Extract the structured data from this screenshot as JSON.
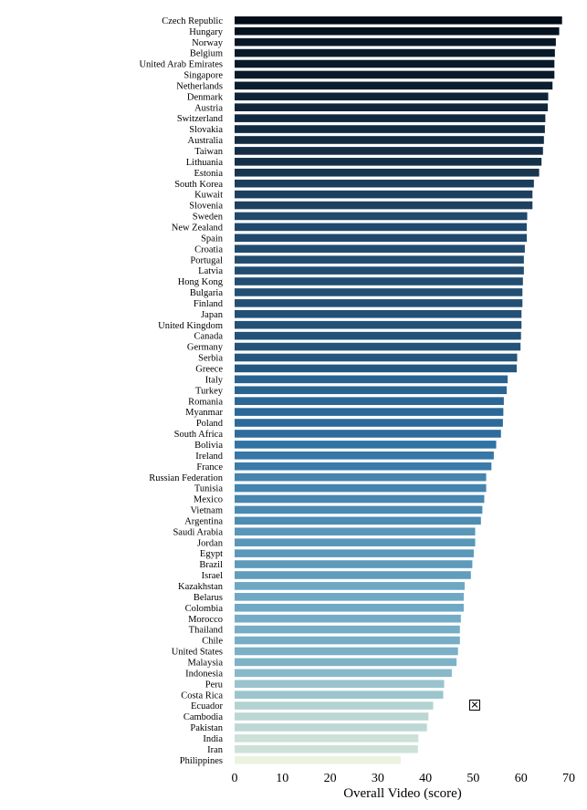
{
  "chart_data": {
    "type": "bar",
    "orientation": "horizontal",
    "xlabel": "Overall Video (score)",
    "ylabel": "",
    "xlim": [
      0,
      70
    ],
    "xticks": [
      "0",
      "10",
      "20",
      "30",
      "40",
      "50",
      "60",
      "70"
    ],
    "colorscale": [
      "#020d18",
      "#1f4566",
      "#2f71a3",
      "#6ba6c3",
      "#b3d2d2",
      "#eaf3df"
    ],
    "categories": [
      "Czech Republic",
      "Hungary",
      "Norway",
      "Belgium",
      "United Arab Emirates",
      "Singapore",
      "Netherlands",
      "Denmark",
      "Austria",
      "Switzerland",
      "Slovakia",
      "Australia",
      "Taiwan",
      "Lithuania",
      "Estonia",
      "South Korea",
      "Kuwait",
      "Slovenia",
      "Sweden",
      "New Zealand",
      "Spain",
      "Croatia",
      "Portugal",
      "Latvia",
      "Hong Kong",
      "Bulgaria",
      "Finland",
      "Japan",
      "United Kingdom",
      "Canada",
      "Germany",
      "Serbia",
      "Greece",
      "Italy",
      "Turkey",
      "Romania",
      "Myanmar",
      "Poland",
      "South Africa",
      "Bolivia",
      "Ireland",
      "France",
      "Russian Federation",
      "Tunisia",
      "Mexico",
      "Vietnam",
      "Argentina",
      "Saudi Arabia",
      "Jordan",
      "Egypt",
      "Brazil",
      "Israel",
      "Kazakhstan",
      "Belarus",
      "Colombia",
      "Morocco",
      "Thailand",
      "Chile",
      "United States",
      "Malaysia",
      "Indonesia",
      "Peru",
      "Costa Rica",
      "Ecuador",
      "Cambodia",
      "Pakistan",
      "India",
      "Iran",
      "Philippines"
    ],
    "values": [
      68.6,
      68.0,
      67.3,
      67.1,
      67.0,
      67.0,
      66.6,
      65.7,
      65.6,
      65.1,
      65.0,
      64.8,
      64.6,
      64.3,
      63.8,
      62.7,
      62.4,
      62.4,
      61.3,
      61.2,
      61.2,
      60.8,
      60.6,
      60.6,
      60.4,
      60.3,
      60.3,
      60.1,
      60.1,
      60.0,
      59.9,
      59.2,
      59.1,
      57.2,
      57.0,
      56.4,
      56.3,
      56.2,
      55.8,
      54.8,
      54.3,
      53.8,
      52.7,
      52.7,
      52.3,
      51.9,
      51.6,
      50.4,
      50.4,
      50.1,
      49.8,
      49.5,
      48.2,
      48.0,
      48.0,
      47.4,
      47.2,
      47.2,
      46.8,
      46.5,
      45.5,
      43.9,
      43.7,
      41.6,
      40.6,
      40.3,
      38.5,
      38.4,
      34.8
    ]
  },
  "overlay": {
    "icon": "close-icon"
  }
}
